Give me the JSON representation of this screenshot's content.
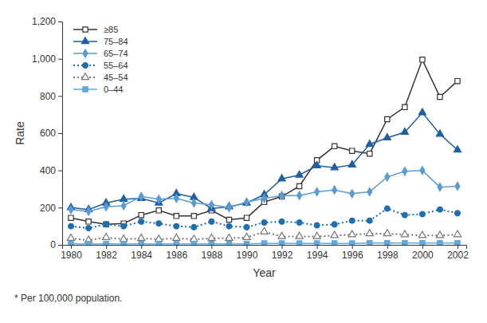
{
  "chart_data": {
    "type": "line",
    "x_label": "Year",
    "y_label": "Rate",
    "footnote": "* Per 100,000 population.",
    "x": [
      1980,
      1981,
      1982,
      1983,
      1984,
      1985,
      1986,
      1987,
      1988,
      1989,
      1990,
      1991,
      1992,
      1993,
      1994,
      1995,
      1996,
      1997,
      1998,
      1999,
      2000,
      2001,
      2002
    ],
    "xlim": [
      1979.5,
      2002.5
    ],
    "xticks": [
      1980,
      1982,
      1984,
      1986,
      1988,
      1990,
      1992,
      1994,
      1996,
      1998,
      2000,
      2002
    ],
    "ylim": [
      0,
      1200
    ],
    "yticks": [
      0,
      200,
      400,
      600,
      800,
      {
        "value": 1000,
        "label": "1,000"
      },
      {
        "value": 1200,
        "label": "1,200"
      }
    ],
    "grid": false,
    "legend": "top-left",
    "series": [
      {
        "name": "≥85",
        "color": "#333333",
        "marker": "square-open",
        "line_style": "solid",
        "values": [
          145,
          125,
          110,
          115,
          160,
          185,
          155,
          155,
          185,
          135,
          145,
          230,
          260,
          315,
          455,
          530,
          505,
          490,
          675,
          740,
          995,
          795,
          880
        ]
      },
      {
        "name": "75–84",
        "color": "#1f5fa0",
        "marker": "triangle",
        "line_style": "solid",
        "values": [
          200,
          190,
          225,
          245,
          250,
          225,
          275,
          255,
          195,
          205,
          225,
          270,
          355,
          375,
          425,
          415,
          430,
          540,
          575,
          605,
          710,
          595,
          510
        ]
      },
      {
        "name": "65–74",
        "color": "#5b9bd5",
        "marker": "diamond",
        "line_style": "solid",
        "values": [
          190,
          180,
          205,
          210,
          260,
          245,
          250,
          225,
          215,
          200,
          230,
          250,
          265,
          265,
          285,
          295,
          275,
          285,
          365,
          395,
          400,
          310,
          315
        ]
      },
      {
        "name": "55–64",
        "color": "#1f6fb0",
        "marker": "circle",
        "line_style": "dotted",
        "values": [
          100,
          90,
          110,
          100,
          125,
          115,
          100,
          95,
          125,
          100,
          95,
          120,
          125,
          120,
          105,
          110,
          130,
          130,
          195,
          160,
          165,
          190,
          170
        ]
      },
      {
        "name": "45–54",
        "color": "#777777",
        "marker": "triangle-open",
        "line_style": "dotted",
        "values": [
          35,
          25,
          40,
          30,
          35,
          30,
          35,
          30,
          35,
          35,
          40,
          70,
          45,
          45,
          45,
          50,
          55,
          60,
          60,
          55,
          50,
          50,
          55
        ]
      },
      {
        "name": "0–44",
        "color": "#5fa8e0",
        "marker": "square",
        "line_style": "solid",
        "values": [
          5,
          5,
          5,
          5,
          5,
          5,
          5,
          5,
          5,
          5,
          5,
          8,
          8,
          8,
          8,
          8,
          8,
          10,
          10,
          10,
          10,
          10,
          10
        ]
      }
    ]
  }
}
